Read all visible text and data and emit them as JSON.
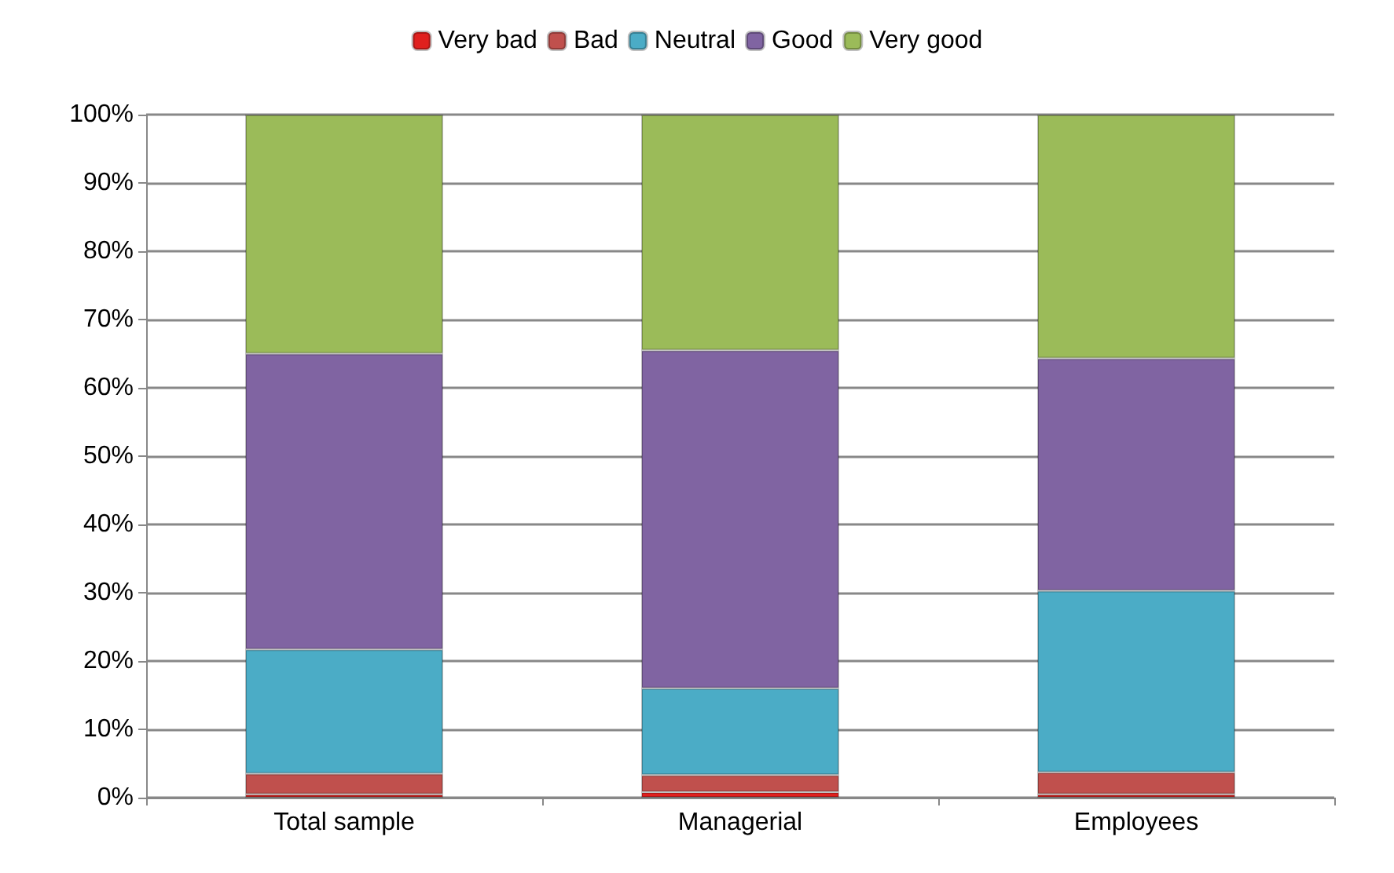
{
  "chart_data": {
    "type": "bar",
    "stacked": true,
    "categories": [
      "Total sample",
      "Managerial",
      "Employees"
    ],
    "series": [
      {
        "name": "Very bad",
        "color": "#e0201e",
        "values": [
          0.5,
          0.8,
          0.5
        ]
      },
      {
        "name": "Bad",
        "color": "#c0504d",
        "values": [
          3,
          2.5,
          3.2
        ]
      },
      {
        "name": "Neutral",
        "color": "#4bacc6",
        "values": [
          18.2,
          12.7,
          26.6
        ]
      },
      {
        "name": "Good",
        "color": "#8064a2",
        "values": [
          43.3,
          49.5,
          34
        ]
      },
      {
        "name": "Very good",
        "color": "#9bbb59",
        "values": [
          35,
          34.5,
          35.7
        ]
      }
    ],
    "ylim": [
      0,
      100
    ],
    "yticks": [
      {
        "value": 0,
        "label": "0%"
      },
      {
        "value": 10,
        "label": "10%"
      },
      {
        "value": 20,
        "label": "20%"
      },
      {
        "value": 30,
        "label": "30%"
      },
      {
        "value": 40,
        "label": "40%"
      },
      {
        "value": 50,
        "label": "50%"
      },
      {
        "value": 60,
        "label": "60%"
      },
      {
        "value": 70,
        "label": "70%"
      },
      {
        "value": 80,
        "label": "80%"
      },
      {
        "value": 90,
        "label": "90%"
      },
      {
        "value": 100,
        "label": "100%"
      }
    ],
    "grid": "y",
    "legend": "top"
  }
}
